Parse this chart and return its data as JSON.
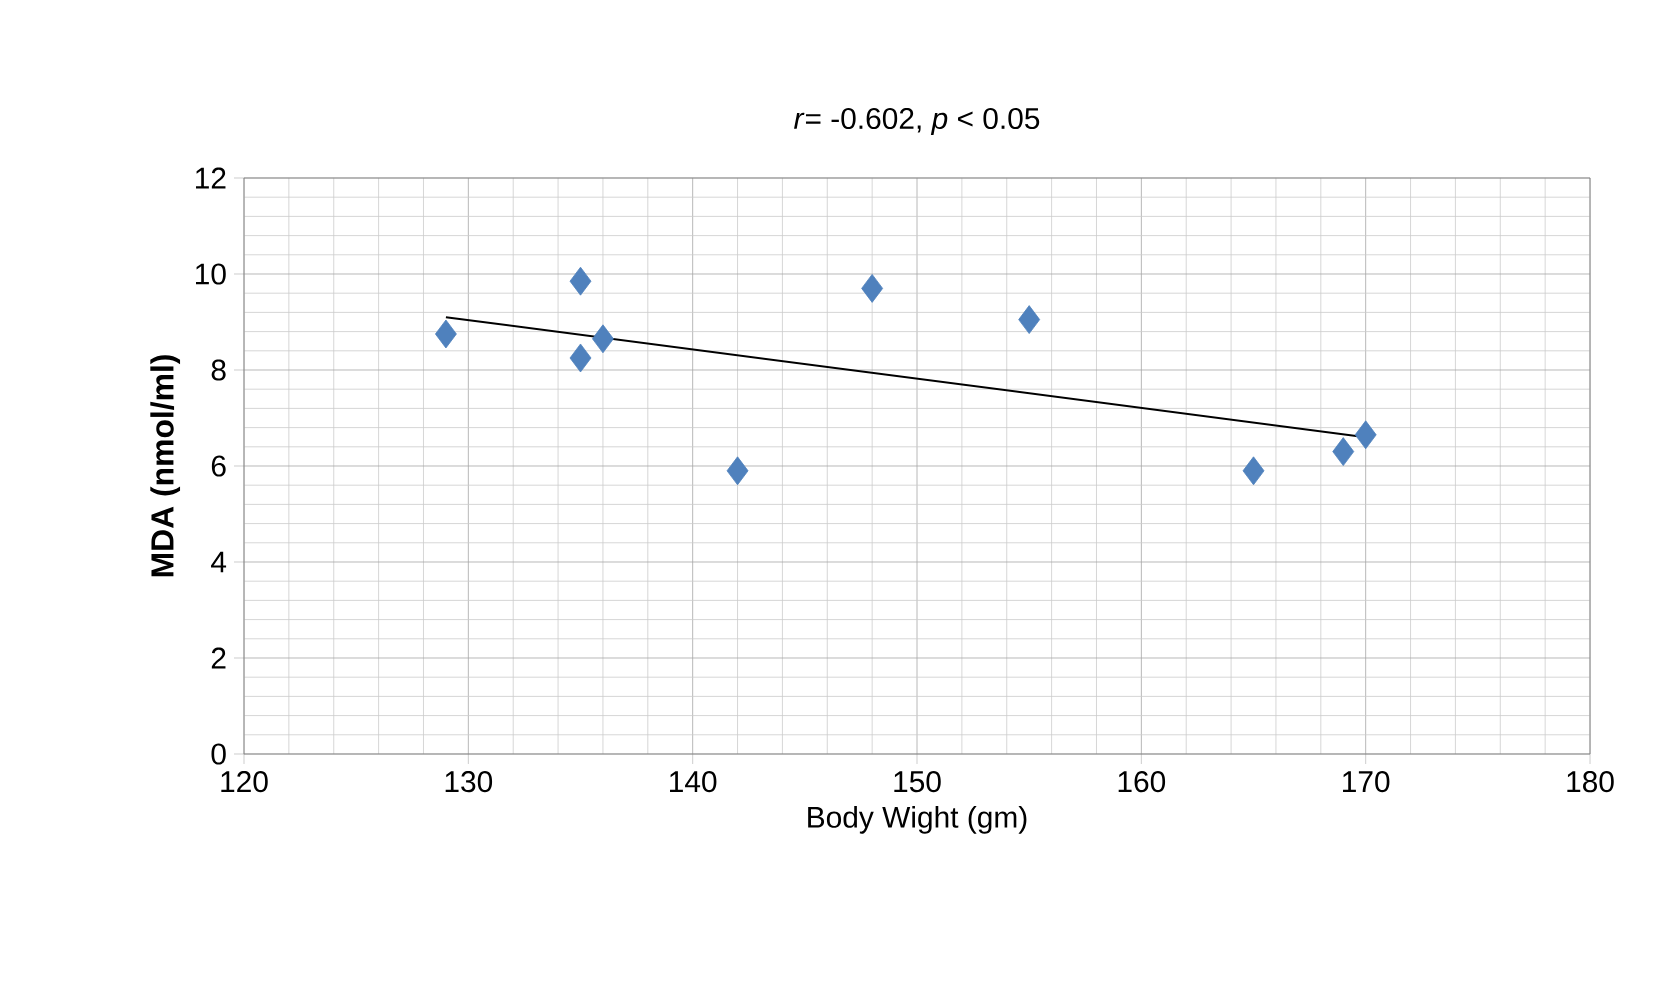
{
  "chart_data": {
    "type": "scatter",
    "title": "*r*= -0.602, *p* < 0.05",
    "xlabel": "Body Wight (gm)",
    "ylabel": "MDA (nmol/ml)",
    "xlim": [
      120,
      180
    ],
    "xticks": [
      120,
      130,
      140,
      150,
      160,
      170,
      180
    ],
    "ylim": [
      0,
      12
    ],
    "yticks": [
      0,
      2,
      4,
      6,
      8,
      10,
      12
    ],
    "grid": true,
    "marker": "diamond",
    "series": [
      {
        "type": "scatter",
        "color": "#4f81bd",
        "x": [
          129,
          135,
          135,
          136,
          142,
          148,
          155,
          165,
          169,
          170
        ],
        "values": [
          8.75,
          9.85,
          8.25,
          8.65,
          5.9,
          9.7,
          9.05,
          5.9,
          6.3,
          6.65
        ]
      },
      {
        "type": "line",
        "color": "#000000",
        "marker": "none",
        "x": [
          129,
          170
        ],
        "values": [
          9.1,
          6.6
        ]
      }
    ]
  }
}
